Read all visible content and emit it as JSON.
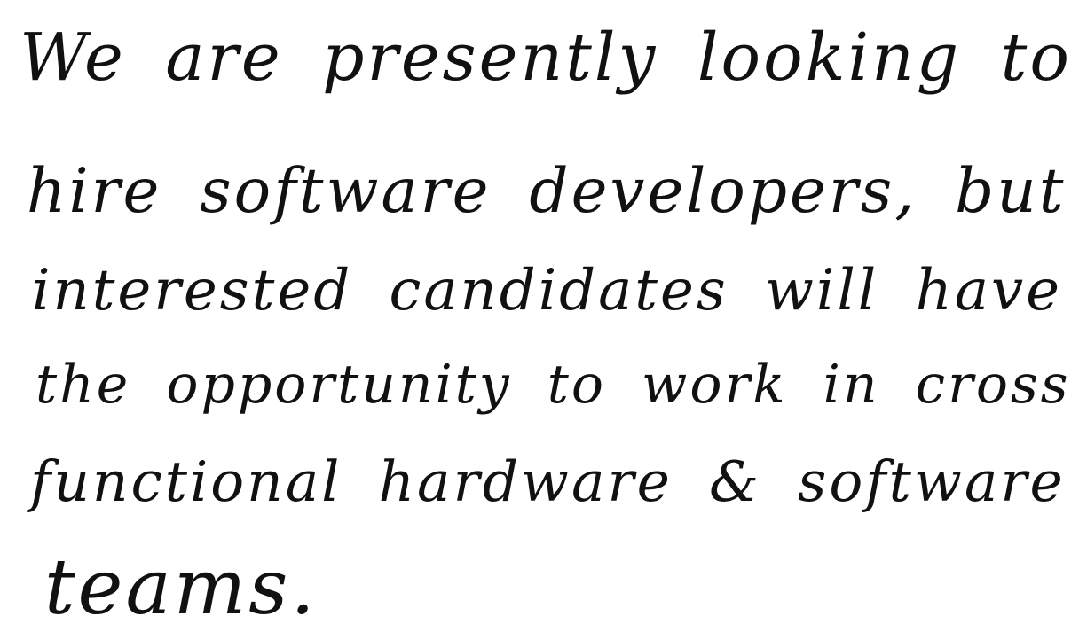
{
  "note": {
    "ink_color": "#111111",
    "paper_color": "#ffffff",
    "lines": [
      "We are presently looking to",
      "hire software developers, but",
      "interested candidates will have",
      "the opportunity to work in cross",
      "functional hardware & software",
      "teams."
    ]
  }
}
